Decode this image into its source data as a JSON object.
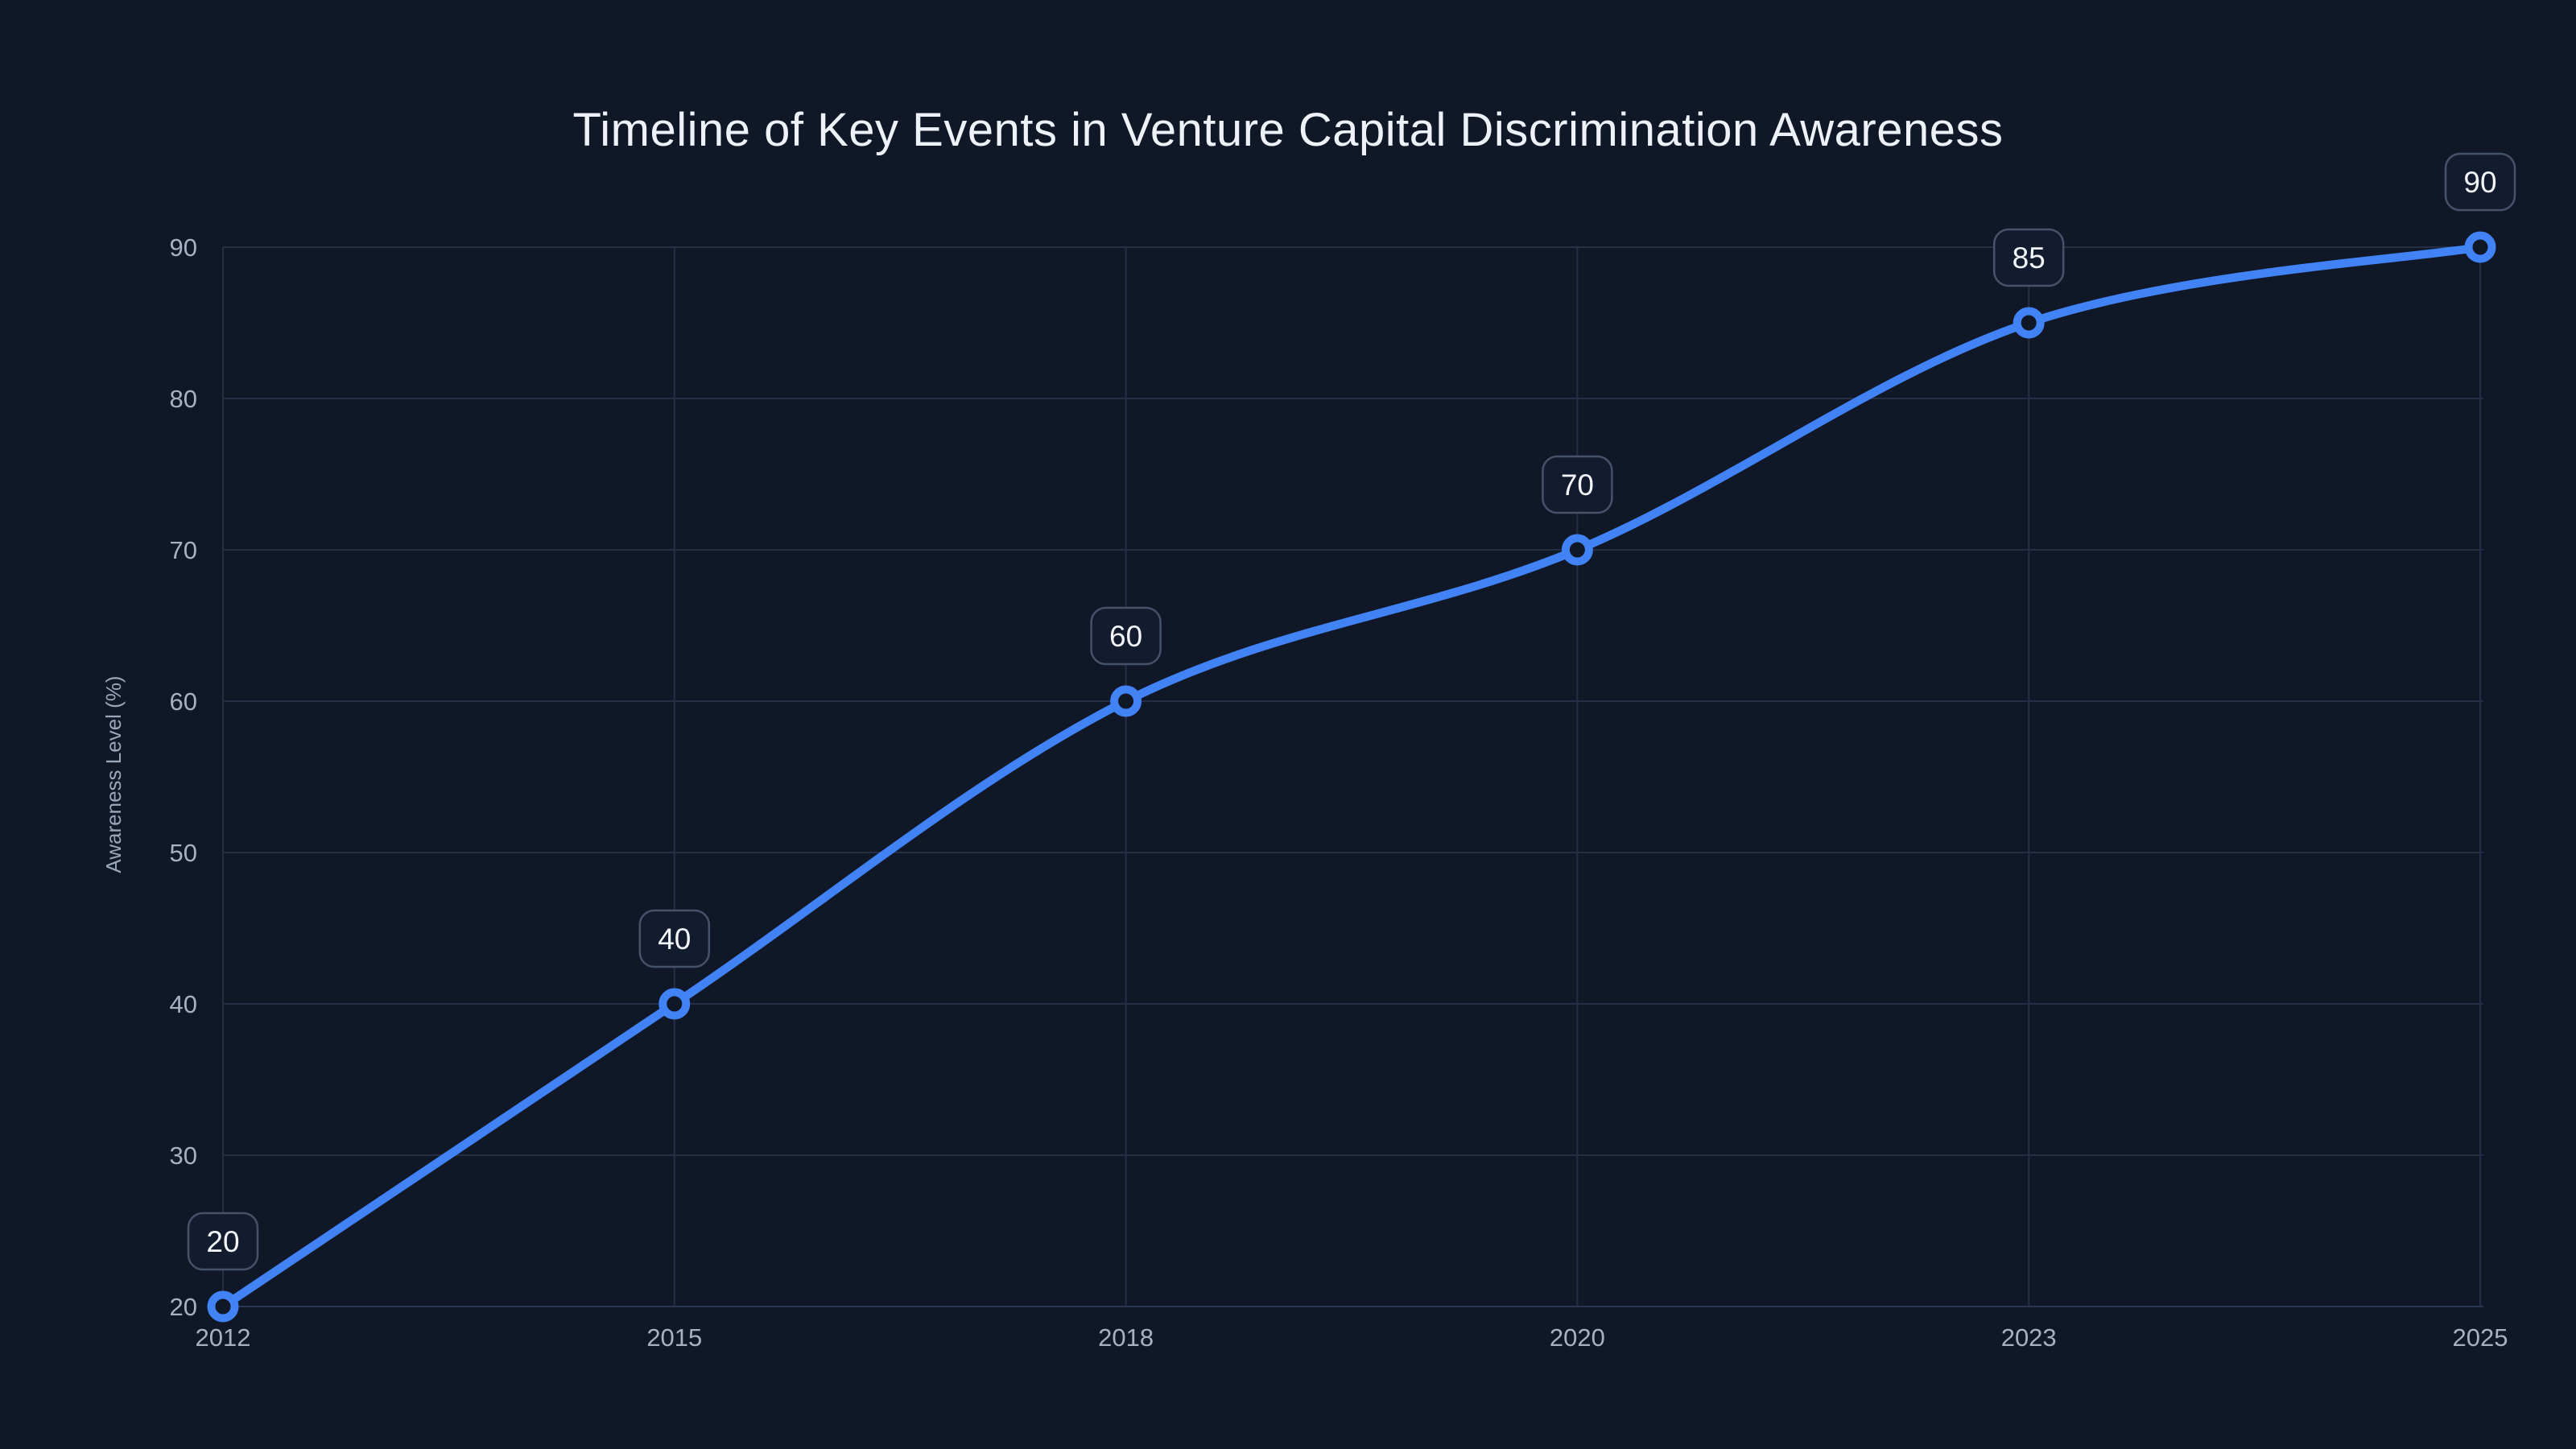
{
  "chart_data": {
    "type": "line",
    "title": "Timeline of Key Events in Venture Capital Discrimination Awareness",
    "xlabel": "",
    "ylabel": "Awareness Level (%)",
    "categories": [
      "2012",
      "2015",
      "2018",
      "2020",
      "2023",
      "2025"
    ],
    "series": [
      {
        "name": "Awareness Level",
        "values": [
          20,
          40,
          60,
          70,
          85,
          90
        ],
        "point_labels": [
          "20",
          "40",
          "60",
          "70",
          "85",
          "90"
        ]
      }
    ],
    "yticks": [
      20,
      30,
      40,
      50,
      60,
      70,
      80,
      90
    ],
    "ylim": [
      20,
      90
    ],
    "grid": true,
    "legend_position": "none",
    "line_shape": "spline",
    "marker_style": "open-circle",
    "colors": {
      "background": "#101828",
      "line": "#4182f5",
      "marker_stroke": "#4182f5",
      "marker_fill": "#101828",
      "grid": "#242f46",
      "axis_line": "#2a3650",
      "tick_label": "#a6b1c4",
      "axis_title": "#9aa6ba",
      "title": "#eef2f8",
      "badge_fill": "#131c2e",
      "badge_border": "#46516a",
      "badge_text": "#f2f5f9"
    }
  }
}
